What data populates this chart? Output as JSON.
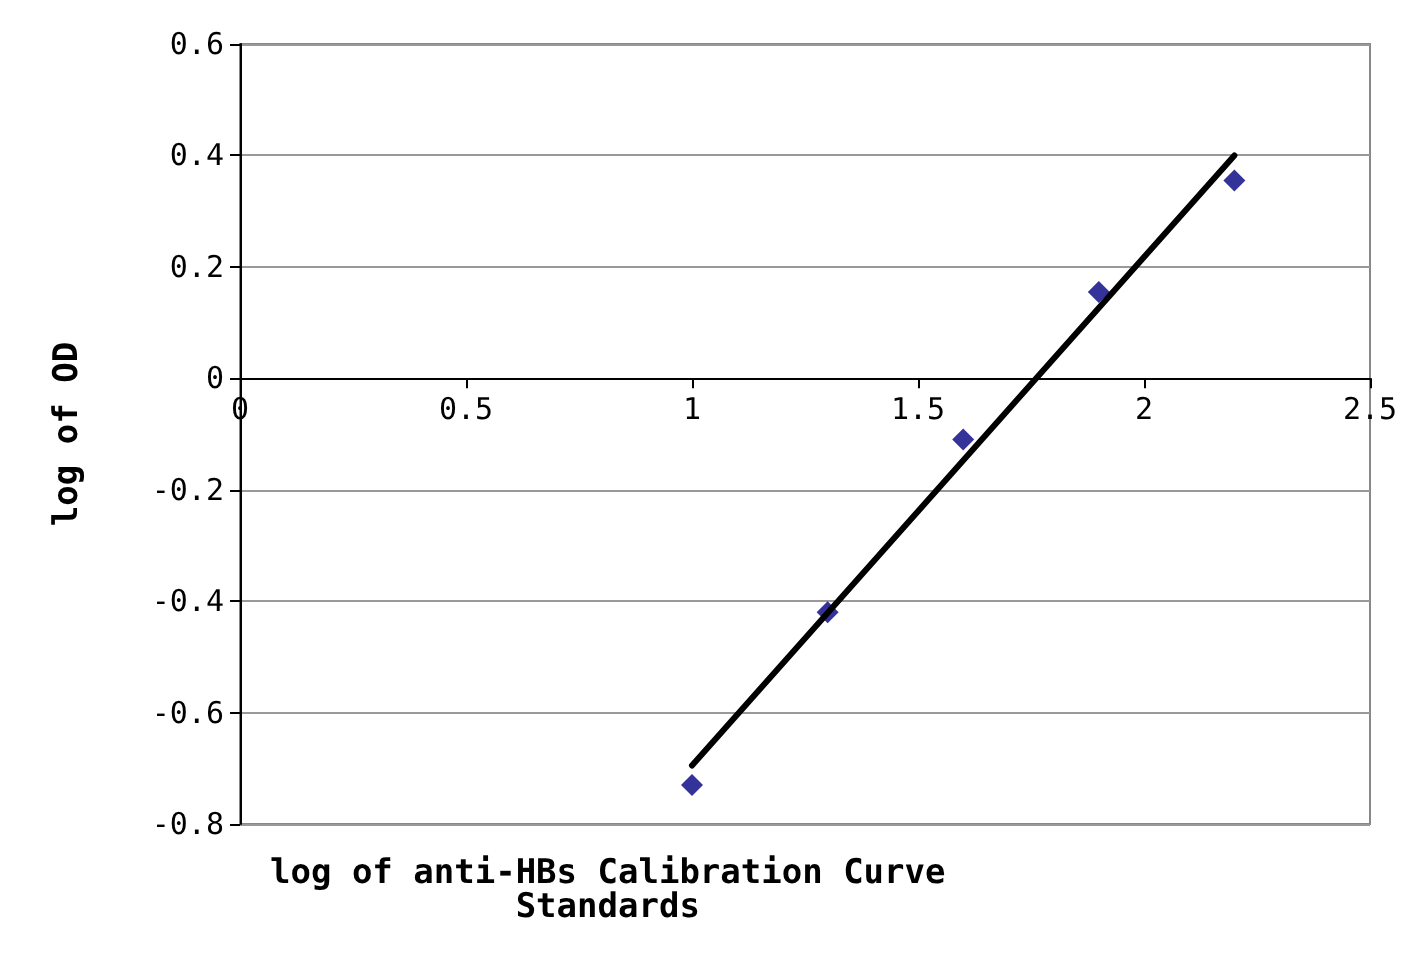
{
  "chart_data": {
    "type": "scatter",
    "xlabel": "log of anti-HBs Calibration Curve Standards",
    "ylabel": "log of OD",
    "xlim": [
      0,
      2.5
    ],
    "xticks": [
      0,
      0.5,
      1,
      1.5,
      2,
      2.5
    ],
    "ylim": [
      -0.8,
      0.6
    ],
    "yticks": [
      -0.8,
      -0.6,
      -0.4,
      -0.2,
      0,
      0.2,
      0.4,
      0.6
    ],
    "grid": "y",
    "series": [
      {
        "marker": "diamond",
        "color": "#000080",
        "x": [
          1,
          1.3,
          1.6,
          1.9,
          2.2
        ],
        "values": [
          -0.73,
          -0.42,
          -0.11,
          0.155,
          0.355
        ]
      },
      {
        "type": "line",
        "marker": "none",
        "color": "#000000",
        "x": [
          1,
          2.2
        ],
        "values": [
          -0.695,
          0.4
        ],
        "line_style": "solid"
      }
    ]
  }
}
